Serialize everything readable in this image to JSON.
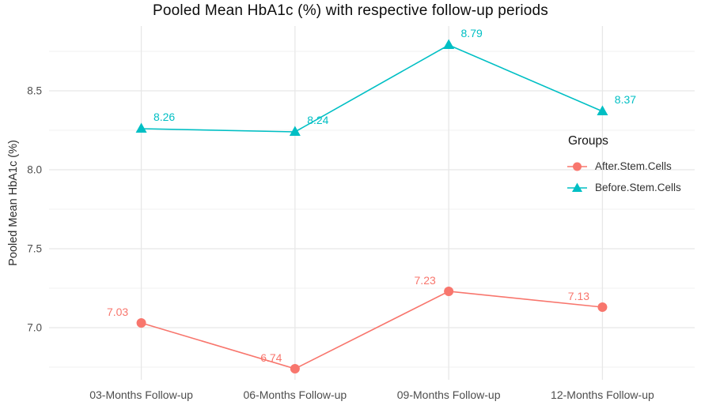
{
  "chart_data": {
    "type": "line",
    "title": "Pooled Mean HbA1c (%) with respective follow-up periods",
    "ylabel": "Pooled Mean HbA1c (%)",
    "xlabel": "",
    "categories": [
      "03-Months Follow-up",
      "06-Months Follow-up",
      "09-Months Follow-up",
      "12-Months Follow-up"
    ],
    "series": [
      {
        "name": "After.Stem.Cells",
        "color": "#F8766D",
        "marker": "circle",
        "values": [
          7.03,
          6.74,
          7.23,
          7.13
        ],
        "labels": [
          "7.03",
          "6.74",
          "7.23",
          "7.13"
        ],
        "label_offset": [
          -30,
          -14
        ]
      },
      {
        "name": "Before.Stem.Cells",
        "color": "#00BFC4",
        "marker": "triangle",
        "values": [
          8.26,
          8.24,
          8.79,
          8.37
        ],
        "labels": [
          "8.26",
          "8.24",
          "8.79",
          "8.37"
        ],
        "label_offset": [
          29,
          -15
        ]
      }
    ],
    "y_ticks": [
      "7.0",
      "7.5",
      "8.0",
      "8.5"
    ],
    "y_minor_ticks": [
      6.75,
      7.25,
      7.75,
      8.25,
      8.75
    ],
    "ylim": [
      6.67,
      8.91
    ],
    "grid": true,
    "gridline_major_color": "#e7e7e7",
    "gridline_minor_color": "#f2f2f2",
    "legend": {
      "title": "Groups",
      "position": "right-inside"
    }
  }
}
